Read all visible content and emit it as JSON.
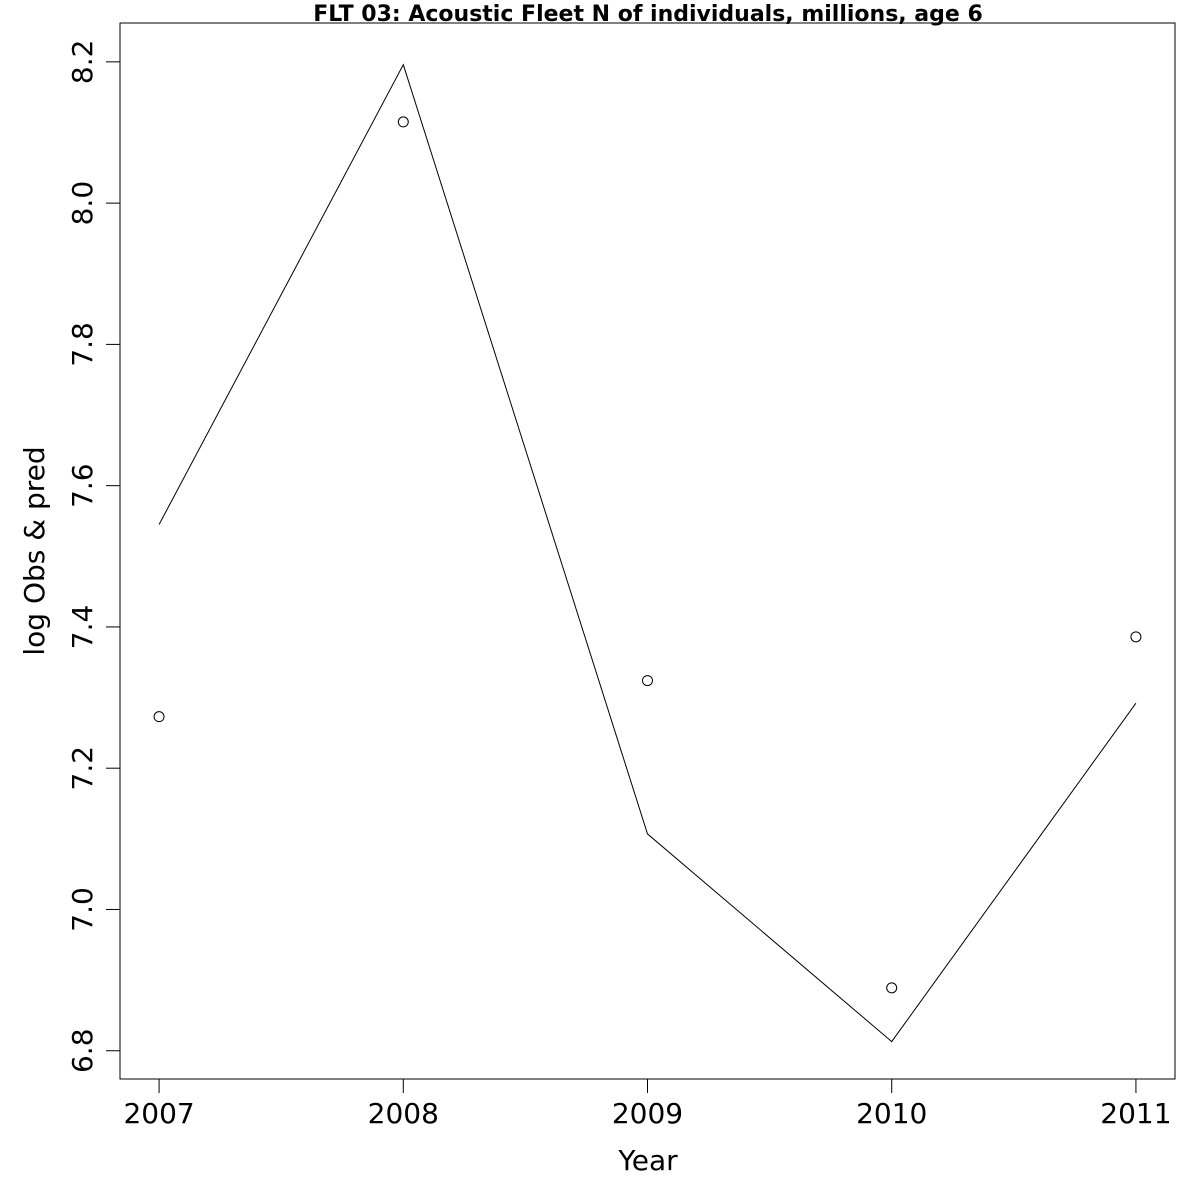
{
  "chart_data": {
    "type": "line",
    "title": "FLT 03: Acoustic Fleet  N of individuals, millions, age 6",
    "xlabel": "Year",
    "ylabel": "log Obs & pred",
    "x": [
      2007,
      2008,
      2009,
      2010,
      2011
    ],
    "xlim": [
      2006.84,
      2011.16
    ],
    "ylim": [
      6.76,
      8.255
    ],
    "xticks": [
      2007,
      2008,
      2009,
      2010,
      2011
    ],
    "yticks": [
      6.8,
      7.0,
      7.2,
      7.4,
      7.6,
      7.8,
      8.0,
      8.2
    ],
    "ytick_labels": [
      "6.8",
      "7.0",
      "7.2",
      "7.4",
      "7.6",
      "7.8",
      "8.0",
      "8.2"
    ],
    "grid": false,
    "series": [
      {
        "style": "line",
        "values": [
          7.545,
          8.196,
          7.107,
          6.813,
          7.292
        ]
      },
      {
        "style": "points",
        "values": [
          7.273,
          8.115,
          7.324,
          6.889,
          7.386
        ]
      }
    ]
  }
}
